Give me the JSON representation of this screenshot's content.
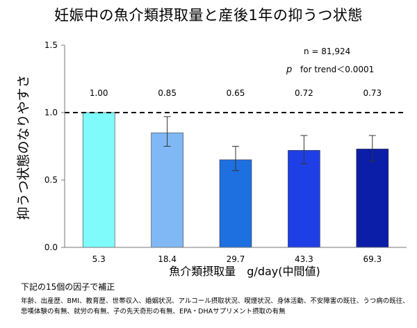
{
  "title": "妊娠中の魚介類摂取量と産後1年の抑うつ状態",
  "chart_data": {
    "type": "bar",
    "categories": [
      "5.3",
      "18.4",
      "29.7",
      "43.3",
      "69.3"
    ],
    "values": [
      1.0,
      0.85,
      0.65,
      0.72,
      0.73
    ],
    "value_labels": [
      "1.00",
      "0.85",
      "0.65",
      "0.72",
      "0.73"
    ],
    "error_low": [
      1.0,
      0.75,
      0.57,
      0.62,
      0.64
    ],
    "error_high": [
      1.0,
      0.97,
      0.75,
      0.83,
      0.83
    ],
    "bar_colors": [
      "#7ffbfb",
      "#7fb8f5",
      "#1e6fe0",
      "#1f3fe6",
      "#0a1ea8"
    ],
    "ylim": [
      0,
      1.5
    ],
    "yticks": [
      0.0,
      0.5,
      1.0,
      1.5
    ],
    "ytick_labels": [
      "0.0",
      "0.5",
      "1.0",
      "1.5"
    ],
    "reference_line": 1.0,
    "ylabel": "抑うつ状態のなりやすさ",
    "xlabel": "魚介類摂取量　g/day(中間値)",
    "annotations": {
      "n": "n = 81,924",
      "p_symbol": "p",
      "p_text": "for trend＜0.0001"
    }
  },
  "notes": {
    "adjust_title": "下記の15個の因子で補正",
    "factors": "年齢、出産歴、BMI、教育歴、世帯収入、婚姻状況、アルコール摂取状況、喫煙状況、身体活動、不安障害の既往、うつ病の既往、悲嘆体験の有無、就労の有無、子の先天奇形の有無、EPA・DHAサプリメント摂取の有無"
  }
}
